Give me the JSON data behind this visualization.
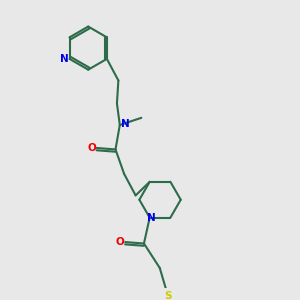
{
  "background_color": "#e8e8e8",
  "bond_color": "#2d6b4a",
  "nitrogen_color": "#0000ee",
  "oxygen_color": "#ee0000",
  "sulfur_color": "#cccc00",
  "line_width": 1.5,
  "figsize": [
    3.0,
    3.0
  ],
  "dpi": 100,
  "xlim": [
    0,
    1
  ],
  "ylim": [
    0,
    1
  ]
}
